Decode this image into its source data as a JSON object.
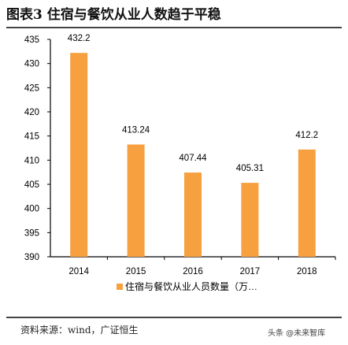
{
  "title": "图表3 住宿与餐饮从业人数趋于平稳",
  "source": "资料来源：wind，广证恒生",
  "watermark": "头条 @未来智库",
  "colors": {
    "bar": "#F7A040",
    "axis": "#000000"
  },
  "chart_data": {
    "type": "bar",
    "categories": [
      "2014",
      "2015",
      "2016",
      "2017",
      "2018"
    ],
    "series": [
      {
        "name": "住宿与餐饮从业人员数量（万…",
        "values": [
          432.2,
          413.24,
          407.44,
          405.31,
          412.2
        ]
      }
    ],
    "data_labels": [
      "432.2",
      "413.24",
      "407.44",
      "405.31",
      "412.2"
    ],
    "ylim": [
      390,
      435
    ],
    "yticks": [
      390,
      395,
      400,
      405,
      410,
      415,
      420,
      425,
      430,
      435
    ],
    "legend_position": "bottom",
    "grid": false
  }
}
